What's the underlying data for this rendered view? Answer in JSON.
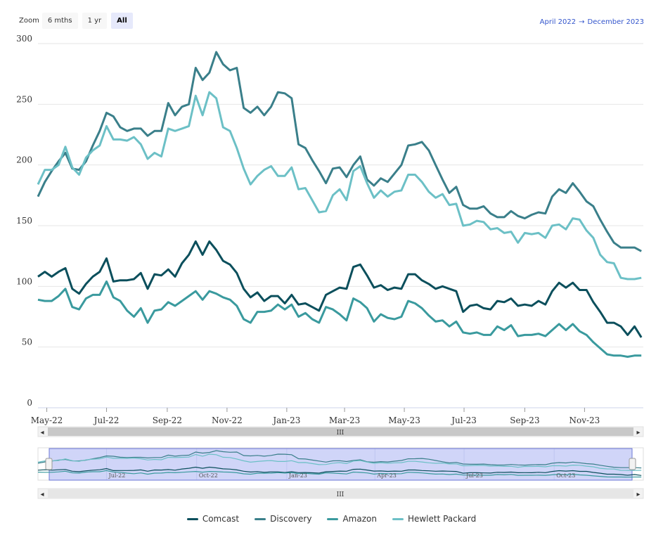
{
  "zoom": {
    "label": "Zoom",
    "buttons": [
      "6 mths",
      "1 yr",
      "All"
    ],
    "active": "All"
  },
  "range": {
    "from": "April 2022",
    "to": "December 2023",
    "separator": "→"
  },
  "navigator": {
    "scroll_grip": "III",
    "left_arrow": "◂",
    "right_arrow": "▸"
  },
  "colors": {
    "Comcast": "#0b4f5c",
    "Discovery": "#3a7f8a",
    "Amazon": "#3a9a9e",
    "Hewlett Packard": "#6cc0c6"
  },
  "chart_data": {
    "type": "line",
    "title": "",
    "xlabel": "",
    "ylabel": "",
    "ylim": [
      0,
      300
    ],
    "yticks": [
      0,
      50,
      100,
      150,
      200,
      250,
      300
    ],
    "grid": true,
    "legend_position": "bottom-center",
    "xlim": [
      "2022-04-22",
      "2023-12-31"
    ],
    "xtick_labels": [
      {
        "date": "2022-05-01",
        "label": "May-22"
      },
      {
        "date": "2022-07-01",
        "label": "Jul-22"
      },
      {
        "date": "2022-09-01",
        "label": "Sep-22"
      },
      {
        "date": "2022-11-01",
        "label": "Nov-22"
      },
      {
        "date": "2023-01-01",
        "label": "Jan-23"
      },
      {
        "date": "2023-03-01",
        "label": "Mar-23"
      },
      {
        "date": "2023-05-01",
        "label": "May-23"
      },
      {
        "date": "2023-07-01",
        "label": "Jul-23"
      },
      {
        "date": "2023-09-01",
        "label": "Sep-23"
      },
      {
        "date": "2023-11-01",
        "label": "Nov-23"
      }
    ],
    "navigator_labels": [
      {
        "date": "2022-07-01",
        "label": "Jul-22"
      },
      {
        "date": "2022-10-01",
        "label": "Oct-22"
      },
      {
        "date": "2023-01-01",
        "label": "Jan-23"
      },
      {
        "date": "2023-04-01",
        "label": "Apr-23"
      },
      {
        "date": "2023-07-01",
        "label": "Jul-23"
      },
      {
        "date": "2023-10-01",
        "label": "Oct-23"
      }
    ],
    "x": [
      "2022-04-22",
      "2022-04-29",
      "2022-05-06",
      "2022-05-13",
      "2022-05-20",
      "2022-05-27",
      "2022-06-03",
      "2022-06-10",
      "2022-06-17",
      "2022-06-24",
      "2022-07-01",
      "2022-07-08",
      "2022-07-15",
      "2022-07-22",
      "2022-07-29",
      "2022-08-05",
      "2022-08-12",
      "2022-08-19",
      "2022-08-26",
      "2022-09-02",
      "2022-09-09",
      "2022-09-16",
      "2022-09-23",
      "2022-09-30",
      "2022-10-07",
      "2022-10-14",
      "2022-10-21",
      "2022-10-28",
      "2022-11-04",
      "2022-11-11",
      "2022-11-18",
      "2022-11-25",
      "2022-12-02",
      "2022-12-09",
      "2022-12-16",
      "2022-12-23",
      "2022-12-30",
      "2023-01-06",
      "2023-01-13",
      "2023-01-20",
      "2023-01-27",
      "2023-02-03",
      "2023-02-10",
      "2023-02-17",
      "2023-02-24",
      "2023-03-03",
      "2023-03-10",
      "2023-03-17",
      "2023-03-24",
      "2023-03-31",
      "2023-04-07",
      "2023-04-14",
      "2023-04-21",
      "2023-04-28",
      "2023-05-05",
      "2023-05-12",
      "2023-05-19",
      "2023-05-26",
      "2023-06-02",
      "2023-06-09",
      "2023-06-16",
      "2023-06-23",
      "2023-06-30",
      "2023-07-07",
      "2023-07-14",
      "2023-07-21",
      "2023-07-28",
      "2023-08-04",
      "2023-08-11",
      "2023-08-18",
      "2023-08-25",
      "2023-09-01",
      "2023-09-08",
      "2023-09-15",
      "2023-09-22",
      "2023-09-29",
      "2023-10-06",
      "2023-10-13",
      "2023-10-20",
      "2023-10-27",
      "2023-11-03",
      "2023-11-10",
      "2023-11-17",
      "2023-11-24",
      "2023-12-01",
      "2023-12-08",
      "2023-12-15",
      "2023-12-22",
      "2023-12-29"
    ],
    "series": [
      {
        "name": "Comcast",
        "values": [
          108,
          112,
          108,
          112,
          115,
          98,
          94,
          102,
          108,
          112,
          123,
          104,
          105,
          105,
          106,
          111,
          98,
          110,
          109,
          114,
          108,
          119,
          126,
          137,
          126,
          137,
          130,
          121,
          118,
          111,
          98,
          91,
          95,
          88,
          92,
          92,
          86,
          93,
          85,
          86,
          83,
          80,
          93,
          96,
          99,
          98,
          116,
          118,
          109,
          99,
          101,
          97,
          99,
          98,
          110,
          110,
          105,
          102,
          98,
          100,
          98,
          96,
          79,
          84,
          85,
          82,
          81,
          88,
          87,
          90,
          84,
          85,
          84,
          88,
          85,
          96,
          103,
          99,
          103,
          97,
          97,
          87,
          79,
          70,
          70,
          67,
          60,
          67,
          58
        ]
      },
      {
        "name": "Discovery",
        "values": [
          174,
          186,
          195,
          203,
          210,
          197,
          196,
          203,
          216,
          228,
          243,
          240,
          231,
          228,
          230,
          230,
          224,
          228,
          228,
          251,
          241,
          248,
          250,
          280,
          270,
          276,
          293,
          283,
          278,
          280,
          247,
          243,
          248,
          241,
          248,
          260,
          259,
          255,
          217,
          214,
          204,
          195,
          185,
          197,
          198,
          190,
          200,
          207,
          188,
          183,
          189,
          186,
          193,
          200,
          216,
          217,
          219,
          212,
          200,
          188,
          177,
          182,
          167,
          164,
          164,
          166,
          160,
          157,
          157,
          162,
          158,
          156,
          159,
          161,
          160,
          174,
          180,
          177,
          185,
          178,
          170,
          166,
          155,
          145,
          136,
          132,
          132,
          132,
          129
        ]
      },
      {
        "name": "Amazon",
        "values": [
          89,
          88,
          88,
          92,
          98,
          83,
          81,
          90,
          93,
          93,
          104,
          91,
          88,
          80,
          75,
          82,
          70,
          80,
          81,
          87,
          84,
          88,
          92,
          96,
          89,
          96,
          94,
          91,
          89,
          84,
          73,
          70,
          79,
          79,
          80,
          85,
          81,
          85,
          75,
          78,
          73,
          70,
          83,
          81,
          77,
          72,
          90,
          87,
          82,
          71,
          77,
          74,
          73,
          75,
          88,
          86,
          82,
          76,
          71,
          72,
          67,
          71,
          62,
          61,
          62,
          60,
          60,
          67,
          64,
          68,
          59,
          60,
          60,
          61,
          59,
          64,
          69,
          64,
          69,
          63,
          60,
          54,
          49,
          44,
          43,
          43,
          42,
          43,
          43
        ]
      },
      {
        "name": "Hewlett Packard",
        "values": [
          184,
          196,
          196,
          200,
          215,
          198,
          192,
          206,
          212,
          216,
          232,
          221,
          221,
          220,
          223,
          217,
          205,
          210,
          207,
          230,
          228,
          230,
          232,
          257,
          241,
          260,
          255,
          231,
          228,
          214,
          197,
          184,
          191,
          196,
          199,
          191,
          191,
          198,
          180,
          181,
          171,
          161,
          162,
          175,
          180,
          171,
          195,
          199,
          185,
          173,
          179,
          174,
          178,
          179,
          192,
          192,
          186,
          178,
          173,
          176,
          167,
          168,
          150,
          151,
          154,
          153,
          147,
          148,
          144,
          145,
          136,
          144,
          143,
          144,
          140,
          150,
          151,
          147,
          156,
          155,
          146,
          140,
          126,
          120,
          119,
          107,
          106,
          106,
          107
        ]
      }
    ]
  }
}
